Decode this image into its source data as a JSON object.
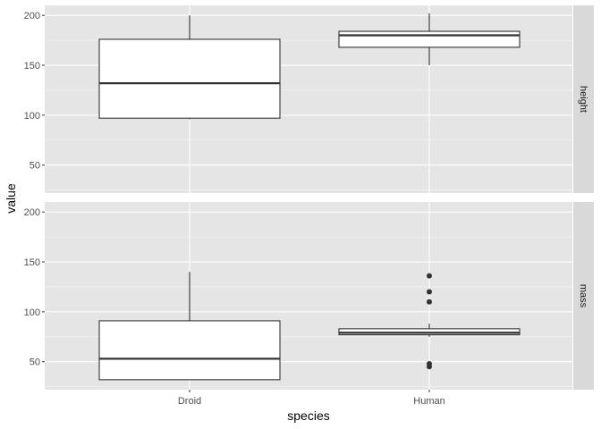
{
  "chart_data": {
    "type": "boxplot",
    "xlabel": "species",
    "ylabel": "value",
    "categories": [
      "Droid",
      "Human"
    ],
    "y_range": [
      22,
      210
    ],
    "y_ticks": [
      50,
      100,
      150,
      200
    ],
    "grid": true,
    "facet_layout": "rows",
    "facet_strip_position": "right",
    "colors": {
      "panel_bg": "#e5e5e5",
      "grid_major": "#ffffff",
      "strip_bg": "#d9d9d9",
      "box_fill": "#ffffff",
      "box_line": "#333333",
      "outlier": "#333333"
    },
    "facets": [
      {
        "label": "height",
        "boxes": [
          {
            "category": "Droid",
            "whisker_low": 96,
            "q1": 97,
            "median": 132,
            "q3": 176,
            "whisker_high": 200,
            "outliers": []
          },
          {
            "category": "Human",
            "whisker_low": 150,
            "q1": 168,
            "median": 180,
            "q3": 184,
            "whisker_high": 202,
            "outliers": []
          }
        ]
      },
      {
        "label": "mass",
        "boxes": [
          {
            "category": "Droid",
            "whisker_low": 32,
            "q1": 32,
            "median": 53,
            "q3": 91,
            "whisker_high": 140,
            "outliers": []
          },
          {
            "category": "Human",
            "whisker_low": 75,
            "q1": 77,
            "median": 79,
            "q3": 83,
            "whisker_high": 88,
            "outliers": [
              45,
              48,
              110,
              120,
              136
            ]
          }
        ]
      }
    ]
  }
}
